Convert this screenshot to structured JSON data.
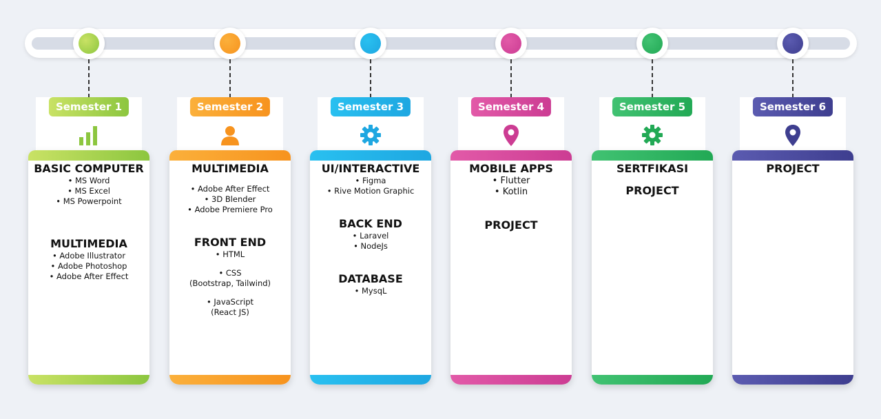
{
  "colors": {
    "s1": "#8cc63f",
    "s1b": "#c9e265",
    "s2": "#f7931e",
    "s2b": "#fbb03b",
    "s3": "#1ea7e1",
    "s3b": "#29c0f0",
    "s4": "#cc3c93",
    "s4b": "#e25aa8",
    "s5": "#22a955",
    "s5b": "#41c272",
    "s6": "#3e3e8f",
    "s6b": "#5b5bb0"
  },
  "semesters": [
    {
      "label": "Semester 1",
      "icon": "bar-chart-icon",
      "heading1": "BASIC COMPUTER",
      "items1": [
        "• MS Word",
        "• MS Excel",
        "• MS Powerpoint"
      ],
      "heading2": "MULTIMEDIA",
      "items2": [
        "• Adobe Illustrator",
        "• Adobe Photoshop",
        "• Adobe After Effect"
      ]
    },
    {
      "label": "Semester 2",
      "icon": "user-icon",
      "heading1": "MULTIMEDIA",
      "items1": [
        "• Adobe After Effect",
        "• 3D Blender",
        "• Adobe Premiere Pro"
      ],
      "heading2": "FRONT END",
      "items2": [
        "• HTML",
        "• CSS",
        "(Bootstrap, Tailwind)",
        "• JavaScript",
        "(React JS)"
      ]
    },
    {
      "label": "Semester 3",
      "icon": "gear-icon",
      "heading1": "UI/INTERACTIVE",
      "items1": [
        "• Figma",
        "• Rive Motion Graphic"
      ],
      "heading2": "BACK END",
      "items2": [
        "• Laravel",
        "• NodeJs"
      ],
      "heading3": "DATABASE",
      "items3": [
        "• MysqL"
      ]
    },
    {
      "label": "Semester 4",
      "icon": "location-pin-icon",
      "heading1": "MOBILE APPS",
      "items1": [
        "• Flutter",
        "• Kotlin"
      ],
      "heading2": "PROJECT"
    },
    {
      "label": "Semester 5",
      "icon": "gear-icon",
      "heading1": "SERTFIKASI",
      "heading2": "PROJECT"
    },
    {
      "label": "Semester 6",
      "icon": "location-pin-icon",
      "heading1": "PROJECT"
    }
  ]
}
